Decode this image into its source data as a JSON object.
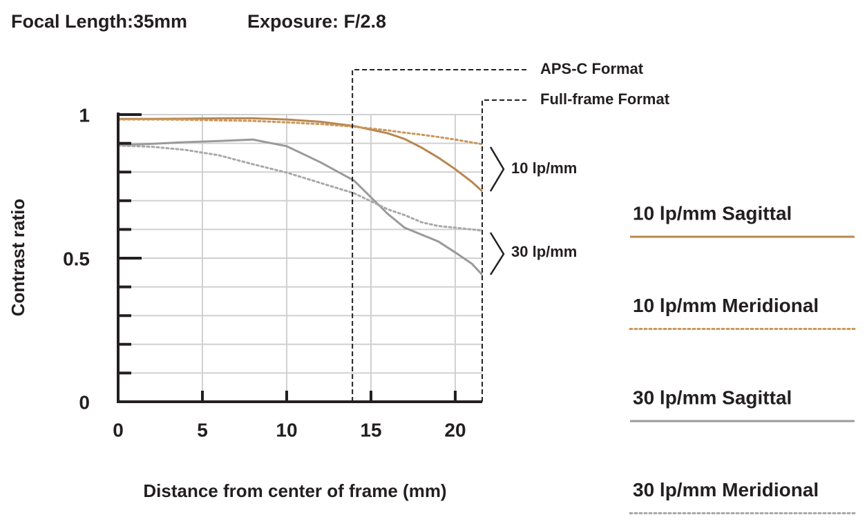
{
  "chart_data": {
    "type": "line",
    "header": [
      "Focal Length:35mm",
      "Exposure: F/2.8"
    ],
    "x_label": "Distance from center of frame (mm)",
    "y_label": "Contrast ratio",
    "x": [
      0,
      2,
      4,
      6,
      8,
      10,
      12,
      14,
      16,
      17,
      18,
      19,
      20,
      21,
      21.6
    ],
    "series": [
      {
        "name": "10 lp/mm Sagittal",
        "color": "#b8864f",
        "dash": false,
        "values": [
          0.985,
          0.985,
          0.986,
          0.987,
          0.987,
          0.983,
          0.975,
          0.96,
          0.935,
          0.915,
          0.885,
          0.85,
          0.81,
          0.765,
          0.733
        ]
      },
      {
        "name": "10 lp/mm Meridional",
        "color": "#c9975c",
        "dash": true,
        "values": [
          0.983,
          0.983,
          0.982,
          0.98,
          0.978,
          0.973,
          0.967,
          0.958,
          0.945,
          0.937,
          0.93,
          0.922,
          0.913,
          0.903,
          0.897
        ]
      },
      {
        "name": "30 lp/mm Sagittal",
        "color": "#9a9a9a",
        "dash": false,
        "values": [
          0.894,
          0.898,
          0.904,
          0.908,
          0.913,
          0.89,
          0.834,
          0.77,
          0.654,
          0.606,
          0.582,
          0.558,
          0.52,
          0.48,
          0.442
        ]
      },
      {
        "name": "30 lp/mm Meridional",
        "color": "#a8a8a8",
        "dash": true,
        "values": [
          0.892,
          0.888,
          0.877,
          0.858,
          0.827,
          0.798,
          0.762,
          0.726,
          0.67,
          0.65,
          0.625,
          0.612,
          0.606,
          0.6,
          0.596
        ]
      }
    ],
    "xlim": [
      0,
      21.6
    ],
    "xticks": [
      0,
      5,
      10,
      15,
      20
    ],
    "ylim": [
      0,
      1
    ],
    "yticks": [
      0,
      0.5,
      1
    ],
    "y_minor_ticks": [
      0.1,
      0.2,
      0.3,
      0.4,
      0.6,
      0.7,
      0.8,
      0.9
    ],
    "grid": true,
    "format_lines": [
      {
        "label": "APS-C Format",
        "x": 13.9
      },
      {
        "label": "Full-frame Format",
        "x": 21.6
      }
    ],
    "annotations": [
      "10 lp/mm",
      "30 lp/mm"
    ]
  }
}
